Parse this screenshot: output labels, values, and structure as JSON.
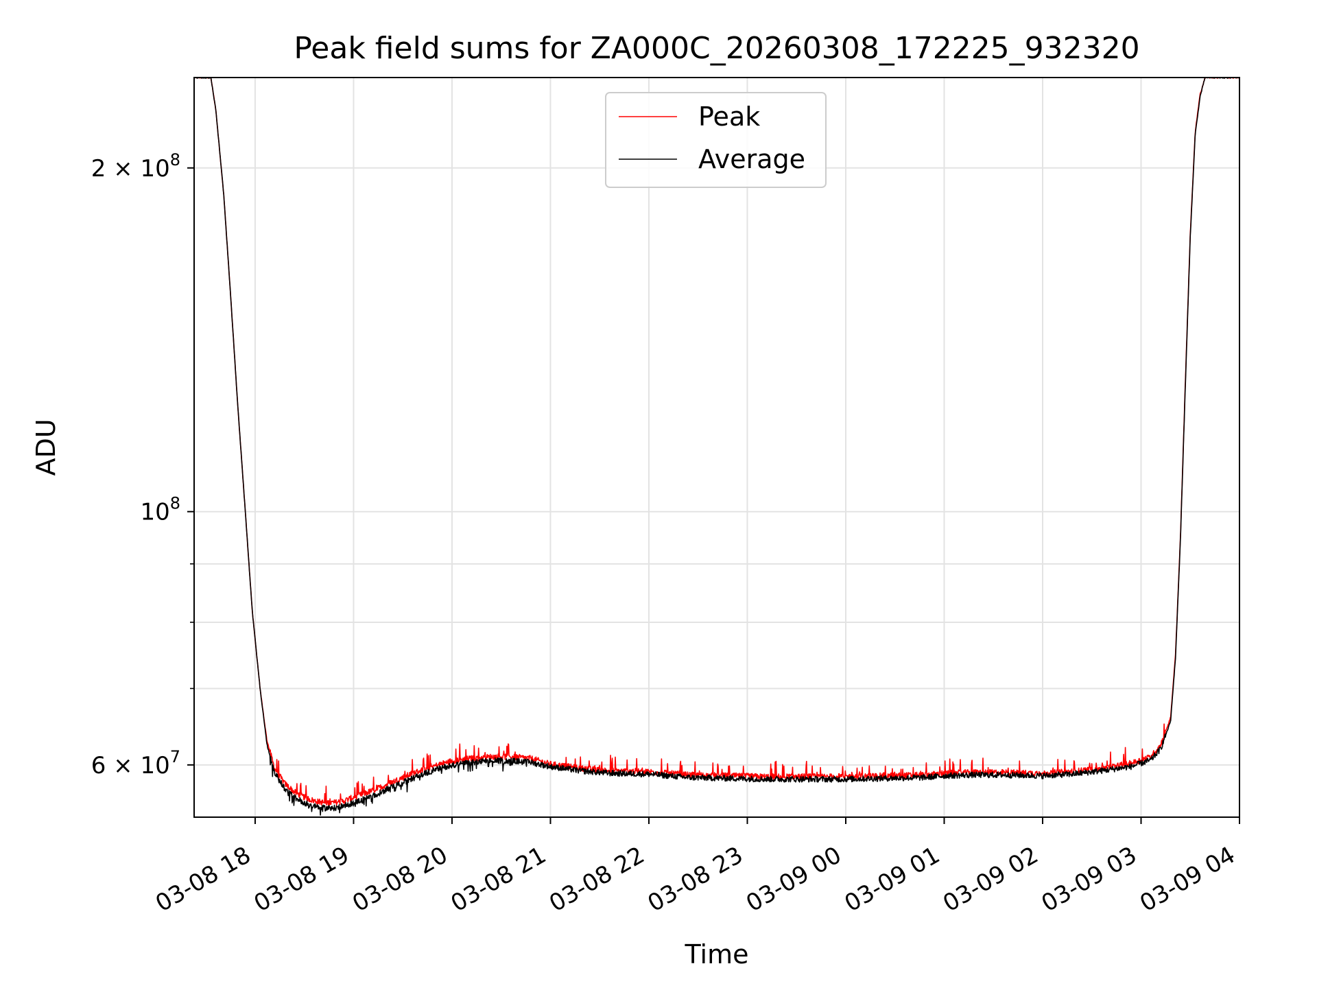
{
  "chart_data": {
    "type": "line",
    "title": "Peak field sums for ZA000C_20260308_172225_932320",
    "xlabel": "Time",
    "ylabel": "ADU",
    "yscale": "log",
    "xlim": [
      17.38,
      28.0
    ],
    "ylim": [
      54000000,
      240000000
    ],
    "grid": true,
    "legend_position": "upper center",
    "x_ticks": [
      {
        "value": 18,
        "label": "03-08 18"
      },
      {
        "value": 19,
        "label": "03-08 19"
      },
      {
        "value": 20,
        "label": "03-08 20"
      },
      {
        "value": 21,
        "label": "03-08 21"
      },
      {
        "value": 22,
        "label": "03-08 22"
      },
      {
        "value": 23,
        "label": "03-08 23"
      },
      {
        "value": 24,
        "label": "03-09 00"
      },
      {
        "value": 25,
        "label": "03-09 01"
      },
      {
        "value": 26,
        "label": "03-09 02"
      },
      {
        "value": 27,
        "label": "03-09 03"
      },
      {
        "value": 28,
        "label": "03-09 04"
      }
    ],
    "y_ticks_major": [
      {
        "value": 200000000,
        "mantissa": "2",
        "exponent": "8"
      },
      {
        "value": 100000000,
        "mantissa": "",
        "exponent": "8"
      },
      {
        "value": 60000000,
        "mantissa": "6",
        "exponent": "7"
      }
    ],
    "y_ticks_minor": [
      70000000,
      80000000,
      90000000
    ],
    "tick_times": "×",
    "tick_base": "10",
    "series": [
      {
        "name": "Peak",
        "color": "#ff0000",
        "x": [
          17.38,
          17.55,
          17.6,
          17.68,
          17.75,
          17.82,
          17.9,
          17.97,
          18.05,
          18.12,
          18.2,
          18.3,
          18.4,
          18.5,
          18.6,
          18.7,
          18.8,
          18.9,
          19.0,
          19.2,
          19.4,
          19.6,
          19.8,
          20.0,
          20.2,
          20.4,
          20.6,
          20.8,
          21.0,
          21.3,
          21.6,
          22.0,
          22.4,
          22.8,
          23.2,
          23.6,
          24.0,
          24.4,
          24.8,
          25.0,
          25.3,
          25.6,
          26.0,
          26.3,
          26.6,
          26.9,
          27.1,
          27.2,
          27.3,
          27.35,
          27.4,
          27.45,
          27.5,
          27.55,
          27.6,
          27.65,
          27.7,
          27.75,
          27.8,
          28.0
        ],
        "y": [
          240000000,
          240000000,
          225000000,
          190000000,
          155000000,
          125000000,
          100000000,
          82000000,
          70000000,
          63000000,
          59500000,
          57800000,
          56800000,
          56200000,
          55800000,
          55600000,
          55600000,
          55800000,
          56200000,
          57000000,
          58000000,
          59000000,
          59800000,
          60500000,
          60800000,
          61000000,
          61000000,
          60800000,
          60100000,
          59600000,
          59300000,
          59200000,
          58800000,
          58700000,
          58600000,
          58600000,
          58600000,
          58700000,
          58800000,
          59000000,
          59100000,
          59100000,
          59000000,
          59200000,
          59600000,
          60200000,
          61000000,
          62500000,
          66000000,
          75000000,
          95000000,
          130000000,
          175000000,
          215000000,
          232000000,
          240000000,
          240000000,
          240000000,
          240000000,
          240000000
        ]
      },
      {
        "name": "Average",
        "color": "#000000",
        "x": [
          17.38,
          17.55,
          17.6,
          17.68,
          17.75,
          17.82,
          17.9,
          17.97,
          18.05,
          18.12,
          18.2,
          18.3,
          18.4,
          18.5,
          18.6,
          18.7,
          18.8,
          18.9,
          19.0,
          19.2,
          19.4,
          19.6,
          19.8,
          20.0,
          20.2,
          20.4,
          20.6,
          20.8,
          21.0,
          21.3,
          21.6,
          22.0,
          22.4,
          22.8,
          23.2,
          23.6,
          24.0,
          24.4,
          24.8,
          25.0,
          25.3,
          25.6,
          26.0,
          26.3,
          26.6,
          26.9,
          27.1,
          27.2,
          27.3,
          27.35,
          27.4,
          27.45,
          27.5,
          27.55,
          27.6,
          27.65,
          27.7,
          27.75,
          27.8,
          28.0
        ],
        "y": [
          240000000,
          240000000,
          225000000,
          190000000,
          155000000,
          125000000,
          100000000,
          82000000,
          70000000,
          62500000,
          59000000,
          57200000,
          56200000,
          55600000,
          55200000,
          55000000,
          55000000,
          55200000,
          55600000,
          56400000,
          57400000,
          58400000,
          59300000,
          60000000,
          60300000,
          60500000,
          60500000,
          60300000,
          59800000,
          59300000,
          59000000,
          58900000,
          58500000,
          58400000,
          58300000,
          58300000,
          58300000,
          58400000,
          58500000,
          58700000,
          58800000,
          58800000,
          58700000,
          58900000,
          59300000,
          59800000,
          60600000,
          62000000,
          65500000,
          74500000,
          94500000,
          129000000,
          174000000,
          214000000,
          231000000,
          240000000,
          240000000,
          240000000,
          240000000,
          240000000
        ]
      }
    ]
  }
}
